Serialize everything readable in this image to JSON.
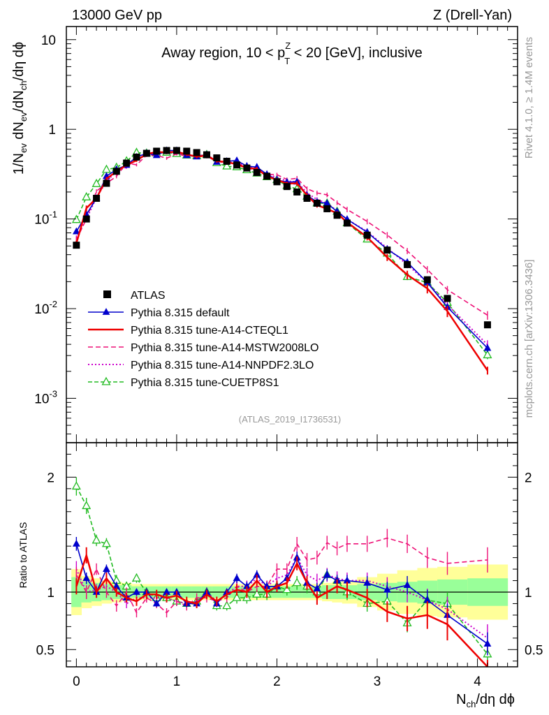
{
  "header": {
    "left": "13000 GeV pp",
    "right": "Z (Drell-Yan)"
  },
  "side_labels": {
    "rivet": "Rivet 4.1.0, ≥ 1.4M events",
    "mcplots": "mcplots.cern.ch [arXiv:1306.3436]"
  },
  "chart_data": {
    "type": "scatter",
    "title": "Away region, 10 < pT^Z < 20 [GeV], inclusive",
    "title_parts": {
      "before": "Away region, 10 < p",
      "sup": "Z",
      "sub": "T",
      "after": " < 20 [GeV], inclusive"
    },
    "analysis_id": "(ATLAS_2019_I1736531)",
    "xlabel": "Nch/dη dϕ",
    "xlabel_parts": {
      "n": "N",
      "sub": "ch",
      "rest": "/dη dϕ"
    },
    "ylabel": "1/Nev dNev/dNch/dη dϕ",
    "ylabel_parts": {
      "a": "1/N",
      "a_sub": "ev",
      "b": " dN",
      "b_sub": "ev",
      "c": "/dN",
      "c_sub": "ch",
      "d": "/dη dϕ"
    },
    "ratio_ylabel": "Ratio to ATLAS",
    "xlim": [
      -0.1,
      4.4
    ],
    "ylim": [
      0.00032,
      14
    ],
    "yscale": "log",
    "ratio_ylim": [
      0.35,
      2.3
    ],
    "x_ticks": [
      "0",
      "1",
      "2",
      "3",
      "4"
    ],
    "y_ticks": [
      "10",
      "1",
      "10^-1",
      "10^-2",
      "10^-3"
    ],
    "ratio_ticks": [
      "2",
      "1",
      "0.5"
    ],
    "x": [
      0.0,
      0.1,
      0.2,
      0.3,
      0.4,
      0.5,
      0.6,
      0.7,
      0.8,
      0.9,
      1.0,
      1.1,
      1.2,
      1.3,
      1.4,
      1.5,
      1.6,
      1.7,
      1.8,
      1.9,
      2.0,
      2.1,
      2.2,
      2.3,
      2.4,
      2.5,
      2.6,
      2.7,
      2.9,
      3.1,
      3.3,
      3.5,
      3.7,
      4.1
    ],
    "data": {
      "name": "ATLAS",
      "values": [
        0.051,
        0.1,
        0.17,
        0.25,
        0.34,
        0.42,
        0.49,
        0.54,
        0.57,
        0.58,
        0.58,
        0.57,
        0.55,
        0.52,
        0.48,
        0.44,
        0.4,
        0.37,
        0.33,
        0.3,
        0.26,
        0.23,
        0.2,
        0.17,
        0.15,
        0.13,
        0.11,
        0.09,
        0.066,
        0.045,
        0.031,
        0.021,
        0.013,
        0.0066
      ],
      "band_inner": [
        0.13,
        0.09,
        0.08,
        0.07,
        0.06,
        0.06,
        0.05,
        0.05,
        0.05,
        0.05,
        0.05,
        0.05,
        0.05,
        0.05,
        0.05,
        0.05,
        0.05,
        0.05,
        0.05,
        0.05,
        0.05,
        0.05,
        0.05,
        0.05,
        0.05,
        0.06,
        0.06,
        0.06,
        0.07,
        0.08,
        0.09,
        0.1,
        0.11,
        0.12
      ],
      "band_outer": [
        0.2,
        0.14,
        0.12,
        0.1,
        0.09,
        0.08,
        0.07,
        0.07,
        0.07,
        0.07,
        0.07,
        0.07,
        0.07,
        0.07,
        0.07,
        0.07,
        0.07,
        0.07,
        0.07,
        0.07,
        0.07,
        0.07,
        0.07,
        0.07,
        0.07,
        0.08,
        0.09,
        0.1,
        0.13,
        0.16,
        0.19,
        0.21,
        0.22,
        0.24
      ]
    },
    "series": [
      {
        "name": "Pythia 8.315 default",
        "color": "#0000cc",
        "dash": "",
        "marker": "triangle-filled",
        "ratio": [
          1.42,
          1.12,
          1.0,
          1.2,
          1.05,
          0.95,
          1.0,
          1.0,
          0.9,
          1.0,
          1.0,
          0.9,
          0.9,
          1.0,
          0.9,
          1.0,
          1.12,
          1.05,
          1.15,
          1.05,
          1.05,
          1.12,
          1.3,
          1.08,
          1.03,
          1.15,
          1.1,
          1.1,
          1.08,
          1.02,
          1.06,
          0.93,
          0.8,
          0.55
        ],
        "ratio_err": [
          0.06,
          0.05,
          0.04,
          0.04,
          0.04,
          0.03,
          0.03,
          0.03,
          0.03,
          0.03,
          0.03,
          0.03,
          0.03,
          0.03,
          0.03,
          0.03,
          0.04,
          0.04,
          0.04,
          0.04,
          0.04,
          0.04,
          0.05,
          0.05,
          0.05,
          0.05,
          0.05,
          0.05,
          0.06,
          0.07,
          0.08,
          0.09,
          0.1,
          0.1
        ]
      },
      {
        "name": "Pythia 8.315 tune-A14-CTEQL1",
        "color": "#ee0000",
        "dash": "",
        "marker": "none",
        "ratio": [
          1.05,
          1.32,
          1.0,
          1.12,
          1.0,
          0.95,
          0.92,
          0.98,
          0.98,
          0.95,
          0.97,
          0.92,
          0.9,
          0.98,
          0.92,
          0.98,
          1.02,
          1.0,
          1.1,
          1.0,
          1.05,
          1.08,
          1.25,
          1.08,
          0.95,
          1.0,
          1.05,
          1.02,
          0.95,
          0.83,
          0.77,
          0.8,
          0.72,
          0.31
        ],
        "ratio_err": [
          0.07,
          0.07,
          0.05,
          0.05,
          0.04,
          0.04,
          0.04,
          0.04,
          0.04,
          0.04,
          0.04,
          0.04,
          0.04,
          0.04,
          0.04,
          0.04,
          0.05,
          0.05,
          0.05,
          0.05,
          0.05,
          0.05,
          0.06,
          0.06,
          0.06,
          0.06,
          0.06,
          0.07,
          0.08,
          0.09,
          0.11,
          0.12,
          0.14,
          0.1
        ]
      },
      {
        "name": "Pythia 8.315 tune-A14-MSTW2008LO",
        "color": "#ee1177",
        "dash": "7,4",
        "marker": "none",
        "ratio": [
          1.15,
          1.0,
          1.2,
          1.0,
          0.88,
          1.0,
          0.82,
          0.95,
          0.9,
          0.82,
          0.92,
          0.88,
          0.95,
          0.95,
          0.92,
          0.95,
          1.05,
          1.0,
          1.05,
          1.05,
          1.2,
          1.2,
          1.42,
          1.28,
          1.3,
          1.43,
          1.38,
          1.42,
          1.42,
          1.47,
          1.42,
          1.3,
          1.25,
          1.28
        ],
        "ratio_err": [
          0.07,
          0.06,
          0.05,
          0.05,
          0.05,
          0.04,
          0.04,
          0.04,
          0.04,
          0.04,
          0.04,
          0.04,
          0.04,
          0.04,
          0.04,
          0.04,
          0.05,
          0.05,
          0.05,
          0.05,
          0.05,
          0.05,
          0.06,
          0.06,
          0.06,
          0.06,
          0.06,
          0.07,
          0.07,
          0.08,
          0.08,
          0.09,
          0.1,
          0.11
        ]
      },
      {
        "name": "Pythia 8.315 tune-A14-NNPDF2.3LO",
        "color": "#cc00cc",
        "dash": "2,3",
        "marker": "none",
        "ratio": [
          1.2,
          1.0,
          1.02,
          1.05,
          1.0,
          0.9,
          0.95,
          0.95,
          0.95,
          0.95,
          0.92,
          0.9,
          0.92,
          1.0,
          0.92,
          0.98,
          1.05,
          1.05,
          1.12,
          1.05,
          1.12,
          1.15,
          1.3,
          1.15,
          1.1,
          1.15,
          1.12,
          1.1,
          1.1,
          1.05,
          1.0,
          0.93,
          0.85,
          0.6
        ],
        "ratio_err": [
          0.07,
          0.06,
          0.05,
          0.05,
          0.04,
          0.04,
          0.04,
          0.04,
          0.04,
          0.04,
          0.04,
          0.04,
          0.04,
          0.04,
          0.04,
          0.04,
          0.05,
          0.05,
          0.05,
          0.05,
          0.05,
          0.05,
          0.06,
          0.06,
          0.06,
          0.06,
          0.06,
          0.07,
          0.07,
          0.08,
          0.09,
          0.1,
          0.11,
          0.12
        ]
      },
      {
        "name": "Pythia 8.315 tune-CUETP8S1",
        "color": "#22bb22",
        "dash": "6,3",
        "marker": "triangle-open",
        "ratio": [
          1.92,
          1.75,
          1.45,
          1.42,
          1.1,
          1.05,
          1.12,
          1.0,
          0.95,
          0.95,
          0.92,
          0.9,
          0.92,
          1.0,
          0.88,
          0.88,
          0.95,
          0.95,
          0.98,
          0.98,
          1.05,
          1.02,
          1.08,
          1.05,
          1.0,
          1.15,
          1.1,
          1.0,
          0.9,
          0.92,
          0.73,
          0.93,
          0.9,
          0.46
        ],
        "ratio_err": [
          0.08,
          0.07,
          0.05,
          0.05,
          0.05,
          0.04,
          0.04,
          0.04,
          0.04,
          0.04,
          0.04,
          0.04,
          0.04,
          0.04,
          0.04,
          0.04,
          0.05,
          0.05,
          0.05,
          0.05,
          0.05,
          0.05,
          0.06,
          0.06,
          0.06,
          0.06,
          0.06,
          0.07,
          0.07,
          0.08,
          0.08,
          0.09,
          0.1,
          0.1
        ]
      }
    ]
  }
}
